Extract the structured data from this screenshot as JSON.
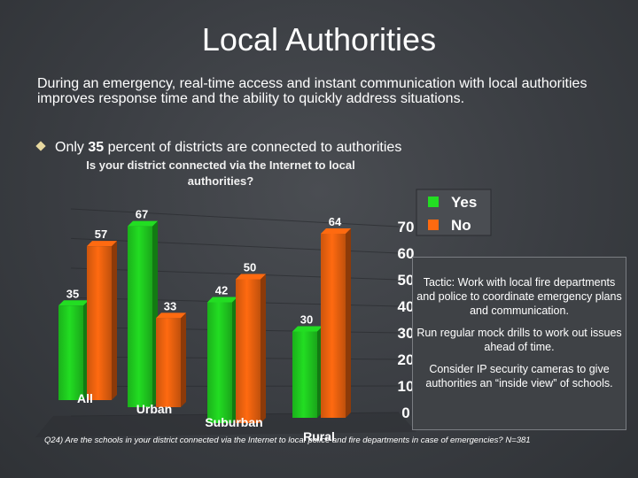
{
  "slide": {
    "title": "Local Authorities",
    "intro": "During an emergency, real-time access and instant communication with local authorities improves response time and the ability to quickly address situations.",
    "bullet_prefix": "Only ",
    "bullet_number": "35",
    "bullet_suffix": " percent of districts are connected to authorities",
    "tactics": [
      "Tactic:  Work with local fire departments and police to coordinate emergency plans and communication.",
      "Run regular mock drills to work out issues ahead of time.",
      "Consider IP security cameras to give authorities an “inside view” of schools."
    ],
    "footnote": "Q24) Are the schools in your district connected via the Internet to local police and fire departments in case of emergencies? N=381"
  },
  "colors": {
    "yes": "#22dd22",
    "no": "#ff6a10"
  },
  "chart_data": {
    "type": "bar",
    "title": "Is your district connected via the Internet to local authorities?",
    "categories": [
      "All",
      "Urban",
      "Suburban",
      "Rural"
    ],
    "series": [
      {
        "name": "Yes",
        "values": [
          35,
          67,
          42,
          30
        ]
      },
      {
        "name": "No",
        "values": [
          57,
          33,
          50,
          64
        ]
      }
    ],
    "yticks": [
      0,
      10,
      20,
      30,
      40,
      50,
      60,
      70
    ],
    "ylim": [
      0,
      70
    ],
    "legend": "top-right",
    "grid": true
  }
}
